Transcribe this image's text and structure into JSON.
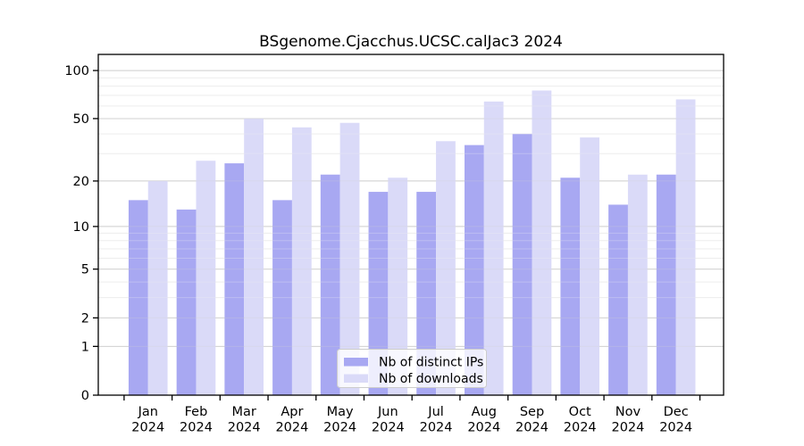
{
  "chart_data": {
    "type": "bar",
    "title": "BSgenome.Cjacchus.UCSC.calJac3 2024",
    "categories": [
      "Jan",
      "Feb",
      "Mar",
      "Apr",
      "May",
      "Jun",
      "Jul",
      "Aug",
      "Sep",
      "Oct",
      "Nov",
      "Dec"
    ],
    "category_sublabel": "2024",
    "series": [
      {
        "name": "Nb of distinct IPs",
        "color": "#a8a8f2",
        "values": [
          15,
          13,
          26,
          15,
          22,
          17,
          17,
          34,
          40,
          21,
          14,
          22
        ]
      },
      {
        "name": "Nb of downloads",
        "color": "#dadaf8",
        "values": [
          20,
          27,
          50,
          44,
          47,
          21,
          36,
          64,
          75,
          38,
          22,
          66
        ]
      }
    ],
    "y_scale": "log1p",
    "y_ticks": [
      0,
      1,
      2,
      5,
      10,
      20,
      50,
      100
    ],
    "y_minor_gridlines": [
      3,
      4,
      6,
      7,
      8,
      9,
      30,
      40,
      60,
      70,
      80,
      90
    ],
    "ylim": [
      0,
      126
    ],
    "xlabel": "",
    "ylabel": "",
    "grid": true,
    "legend_position": "bottom-center",
    "colors": {
      "background": "#ffffff",
      "axis": "#000000",
      "major_grid": "#d2d2d2",
      "minor_grid": "#ededed",
      "legend_border": "#cccccc",
      "legend_fill": "#ffffff"
    }
  }
}
